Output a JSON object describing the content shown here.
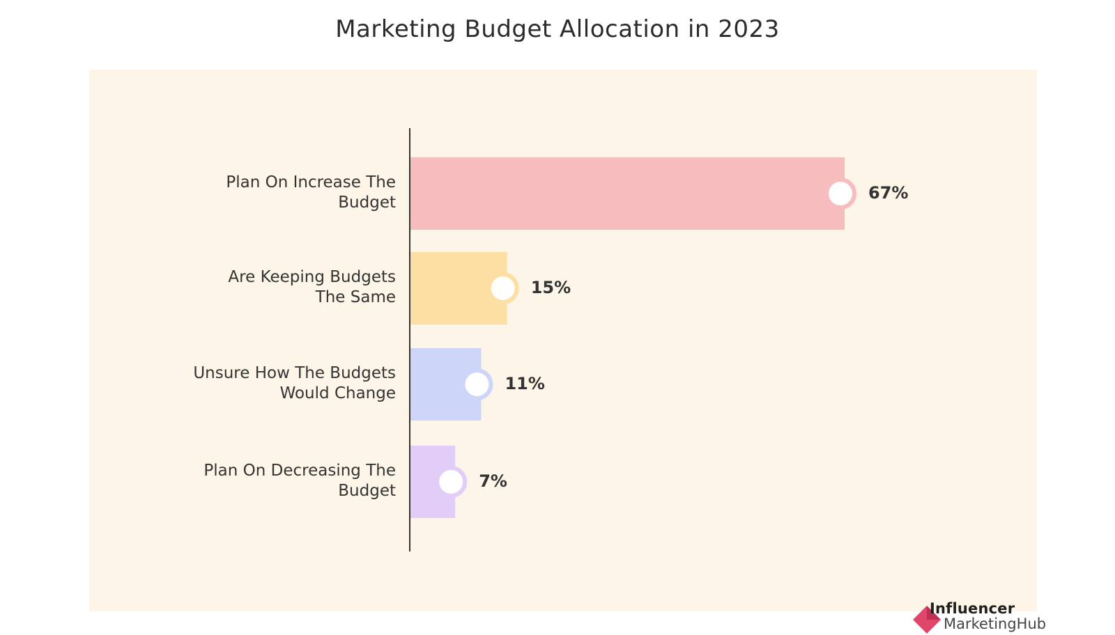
{
  "title": "Marketing Budget Allocation in 2023",
  "colors": {
    "panel_bg": "#fdf5e8",
    "axis": "#333333",
    "knob_fill": "#ffffff"
  },
  "chart_data": {
    "type": "bar",
    "orientation": "horizontal",
    "title": "Marketing Budget Allocation in 2023",
    "categories": [
      "Plan On Increase The\nBudget",
      "Are Keeping Budgets\nThe Same",
      "Unsure How The Budgets\nWould Change",
      "Plan On Decreasing The\nBudget"
    ],
    "values": [
      67,
      15,
      11,
      7
    ],
    "value_labels": [
      "67%",
      "15%",
      "11%",
      "7%"
    ],
    "bar_colors": [
      "#f7bcbd",
      "#fddfa4",
      "#cdd5f8",
      "#e2cdf8"
    ],
    "knob_colors": [
      "#f7bcbd",
      "#fddfa4",
      "#cdd5f8",
      "#e2cdf8"
    ],
    "xlim": [
      0,
      70
    ],
    "grid": false,
    "legend": "none"
  },
  "logo": {
    "line1": "Influencer",
    "line2": "MarketingHub"
  }
}
